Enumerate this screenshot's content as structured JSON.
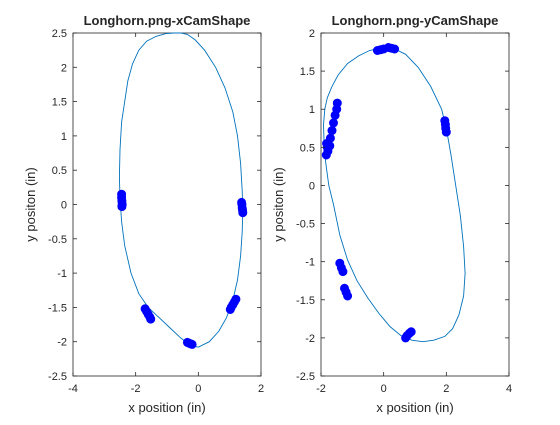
{
  "chart_data": [
    {
      "type": "scatter",
      "title": "Longhorn.png-xCamShape",
      "xlabel": "x position (in)",
      "ylabel": "y positon (in)",
      "xlim": [
        -4,
        2
      ],
      "ylim": [
        -2.5,
        2.5
      ],
      "xticks": [
        -4,
        -2,
        0,
        2
      ],
      "yticks": [
        -2.5,
        -2,
        -1.5,
        -1,
        -0.5,
        0,
        0.5,
        1,
        1.5,
        2,
        2.5
      ],
      "grid": false,
      "line_color": "#0072BD",
      "marker_color": "#0000FF",
      "curve": {
        "name": "cam profile",
        "x": [
          -0.55,
          -0.35,
          -0.1,
          0.2,
          0.55,
          0.85,
          1.1,
          1.25,
          1.35,
          1.4,
          1.42,
          1.4,
          1.35,
          1.25,
          1.1,
          0.9,
          0.65,
          0.35,
          0.0,
          -0.25,
          -0.55,
          -0.9,
          -1.25,
          -1.6,
          -1.9,
          -2.15,
          -2.35,
          -2.45,
          -2.5,
          -2.52,
          -2.5,
          -2.45,
          -2.35,
          -2.25,
          -2.1,
          -1.9,
          -1.65,
          -1.35,
          -1.05,
          -0.8,
          -0.55
        ],
        "y": [
          2.5,
          2.48,
          2.4,
          2.25,
          2.0,
          1.7,
          1.35,
          1.0,
          0.6,
          0.2,
          -0.1,
          -0.4,
          -0.75,
          -1.1,
          -1.4,
          -1.65,
          -1.85,
          -2.0,
          -2.08,
          -2.05,
          -1.95,
          -1.8,
          -1.65,
          -1.5,
          -1.3,
          -1.0,
          -0.6,
          -0.25,
          0.1,
          0.4,
          0.8,
          1.2,
          1.5,
          1.8,
          2.05,
          2.25,
          2.38,
          2.45,
          2.49,
          2.5,
          2.5
        ]
      },
      "markers": {
        "name": "contact points",
        "x": [
          -2.45,
          -2.45,
          -2.44,
          -2.43,
          -2.44,
          1.38,
          1.39,
          1.4,
          1.41,
          1.42,
          1.2,
          1.15,
          1.1,
          1.05,
          1.02,
          -0.35,
          -0.3,
          -0.25,
          -0.2,
          -1.7,
          -1.65,
          -1.6,
          -1.55,
          -1.52
        ],
        "y": [
          0.15,
          0.1,
          0.05,
          0.0,
          -0.03,
          0.03,
          0.0,
          -0.05,
          -0.08,
          -0.12,
          -1.38,
          -1.42,
          -1.46,
          -1.5,
          -1.53,
          -2.01,
          -2.02,
          -2.03,
          -2.04,
          -1.52,
          -1.56,
          -1.6,
          -1.64,
          -1.67
        ]
      }
    },
    {
      "type": "scatter",
      "title": "Longhorn.png-yCamShape",
      "xlabel": "x position (in)",
      "ylabel": "y positon (in)",
      "xlim": [
        -2,
        4
      ],
      "ylim": [
        -2.5,
        2
      ],
      "xticks": [
        -2,
        0,
        2,
        4
      ],
      "yticks": [
        -2.5,
        -2,
        -1.5,
        -1,
        -0.5,
        0,
        0.5,
        1,
        1.5,
        2
      ],
      "grid": false,
      "line_color": "#0072BD",
      "marker_color": "#0000FF",
      "curve": {
        "name": "cam profile",
        "x": [
          0.3,
          0.7,
          1.1,
          1.5,
          1.85,
          2.0,
          2.15,
          2.3,
          2.45,
          2.55,
          2.6,
          2.55,
          2.4,
          2.2,
          1.95,
          1.6,
          1.25,
          0.9,
          0.55,
          0.2,
          -0.15,
          -0.5,
          -0.85,
          -1.15,
          -1.4,
          -1.6,
          -1.75,
          -1.85,
          -1.9,
          -1.92,
          -1.88,
          -1.8,
          -1.65,
          -1.45,
          -1.15,
          -0.8,
          -0.45,
          -0.1,
          0.3
        ],
        "y": [
          1.8,
          1.72,
          1.55,
          1.3,
          1.0,
          0.75,
          0.4,
          0.0,
          -0.4,
          -0.8,
          -1.15,
          -1.45,
          -1.7,
          -1.88,
          -1.98,
          -2.03,
          -2.05,
          -2.03,
          -1.97,
          -1.85,
          -1.68,
          -1.48,
          -1.25,
          -0.98,
          -0.65,
          -0.25,
          0.0,
          0.3,
          0.55,
          0.8,
          1.0,
          1.15,
          1.3,
          1.45,
          1.6,
          1.7,
          1.77,
          1.8,
          1.8
        ]
      },
      "markers": {
        "name": "contact points",
        "x": [
          -0.2,
          -0.1,
          0.0,
          0.15,
          0.25,
          0.35,
          -1.48,
          -1.5,
          -1.55,
          -1.6,
          -1.65,
          -1.7,
          -1.72,
          -1.78,
          -1.8,
          -1.82,
          -1.83,
          1.95,
          1.97,
          1.98,
          2.0,
          -1.4,
          -1.35,
          -1.3,
          -1.25,
          -1.2,
          -1.15,
          0.7,
          0.75,
          0.82,
          0.88
        ],
        "y": [
          1.77,
          1.78,
          1.79,
          1.81,
          1.8,
          1.79,
          1.08,
          1.0,
          0.92,
          0.82,
          0.72,
          0.62,
          0.52,
          0.45,
          0.5,
          0.55,
          0.4,
          0.85,
          0.8,
          0.75,
          0.7,
          -1.02,
          -1.08,
          -1.13,
          -1.35,
          -1.4,
          -1.45,
          -2.0,
          -1.97,
          -1.94,
          -1.92
        ]
      }
    }
  ]
}
